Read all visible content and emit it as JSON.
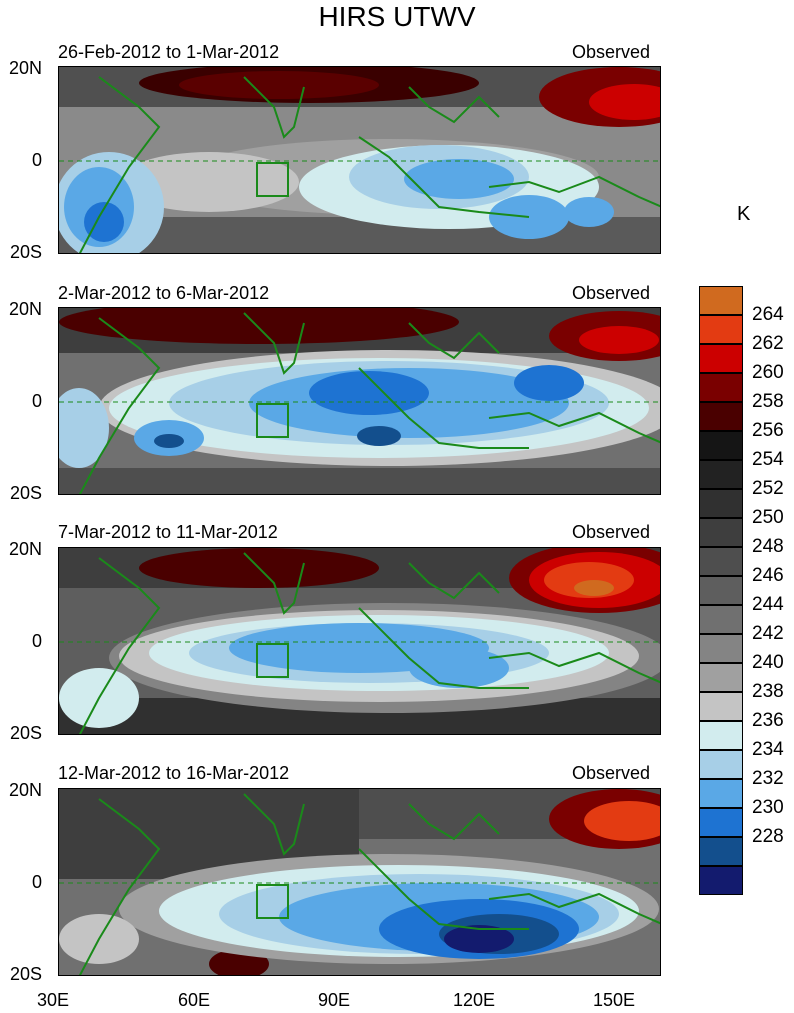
{
  "figure": {
    "title": "HIRS UTWV",
    "panels": [
      {
        "date_range": "26-Feb-2012 to 1-Mar-2012",
        "label": "Observed"
      },
      {
        "date_range": "2-Mar-2012 to 6-Mar-2012",
        "label": "Observed"
      },
      {
        "date_range": "7-Mar-2012 to 11-Mar-2012",
        "label": "Observed"
      },
      {
        "date_range": "12-Mar-2012 to 16-Mar-2012",
        "label": "Observed"
      }
    ],
    "y_ticks": [
      "20N",
      "0",
      "20S"
    ],
    "x_ticks": [
      "30E",
      "60E",
      "90E",
      "120E",
      "150E"
    ],
    "colorbar": {
      "unit": "K",
      "labels": [
        "264",
        "262",
        "260",
        "258",
        "256",
        "254",
        "252",
        "250",
        "248",
        "246",
        "244",
        "242",
        "240",
        "238",
        "236",
        "234",
        "232",
        "230",
        "228"
      ],
      "colors": [
        "#d06a1f",
        "#e33b12",
        "#cc0000",
        "#7a0000",
        "#4a0000",
        "#151515",
        "#222222",
        "#303030",
        "#3e3e3e",
        "#4e4e4e",
        "#5e5e5e",
        "#707070",
        "#848484",
        "#a0a0a0",
        "#c4c4c4",
        "#d2ecee",
        "#a7cfe7",
        "#5aa8e6",
        "#1e73d2",
        "#134f8d",
        "#131b6e"
      ]
    }
  }
}
